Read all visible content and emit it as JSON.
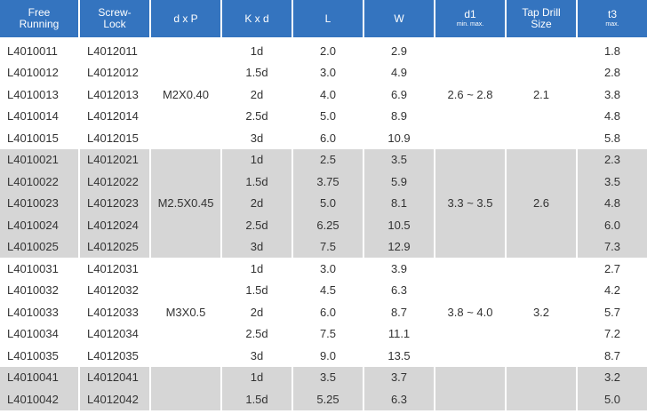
{
  "header": [
    {
      "lines": [
        "Free",
        "Running"
      ]
    },
    {
      "lines": [
        "Screw-",
        "Lock"
      ]
    },
    {
      "lines": [
        "d x P"
      ]
    },
    {
      "lines": [
        "K x d"
      ]
    },
    {
      "lines": [
        "L"
      ]
    },
    {
      "lines": [
        "W"
      ]
    },
    {
      "lines": [
        "d1"
      ],
      "note": "min. max."
    },
    {
      "lines": [
        "Tap Drill",
        "Size"
      ]
    },
    {
      "lines": [
        "t3"
      ],
      "note": "max."
    }
  ],
  "groups": [
    {
      "thread": "M2X0.40",
      "d1": "2.6 ~ 2.8",
      "tap_drill": "2.1",
      "rows": [
        [
          "L4010011",
          "L4012011",
          "1d",
          "2.0",
          "2.9",
          "1.8"
        ],
        [
          "L4010012",
          "L4012012",
          "1.5d",
          "3.0",
          "4.9",
          "2.8"
        ],
        [
          "L4010013",
          "L4012013",
          "2d",
          "4.0",
          "6.9",
          "3.8"
        ],
        [
          "L4010014",
          "L4012014",
          "2.5d",
          "5.0",
          "8.9",
          "4.8"
        ],
        [
          "L4010015",
          "L4012015",
          "3d",
          "6.0",
          "10.9",
          "5.8"
        ]
      ]
    },
    {
      "thread": "M2.5X0.45",
      "d1": "3.3 ~ 3.5",
      "tap_drill": "2.6",
      "rows": [
        [
          "L4010021",
          "L4012021",
          "1d",
          "2.5",
          "3.5",
          "2.3"
        ],
        [
          "L4010022",
          "L4012022",
          "1.5d",
          "3.75",
          "5.9",
          "3.5"
        ],
        [
          "L4010023",
          "L4012023",
          "2d",
          "5.0",
          "8.1",
          "4.8"
        ],
        [
          "L4010024",
          "L4012024",
          "2.5d",
          "6.25",
          "10.5",
          "6.0"
        ],
        [
          "L4010025",
          "L4012025",
          "3d",
          "7.5",
          "12.9",
          "7.3"
        ]
      ]
    },
    {
      "thread": "M3X0.5",
      "d1": "3.8 ~ 4.0",
      "tap_drill": "3.2",
      "rows": [
        [
          "L4010031",
          "L4012031",
          "1d",
          "3.0",
          "3.9",
          "2.7"
        ],
        [
          "L4010032",
          "L4012032",
          "1.5d",
          "4.5",
          "6.3",
          "4.2"
        ],
        [
          "L4010033",
          "L4012033",
          "2d",
          "6.0",
          "8.7",
          "5.7"
        ],
        [
          "L4010034",
          "L4012034",
          "2.5d",
          "7.5",
          "11.1",
          "7.2"
        ],
        [
          "L4010035",
          "L4012035",
          "3d",
          "9.0",
          "13.5",
          "8.7"
        ]
      ]
    },
    {
      "rows": [
        [
          "L4010041",
          "L4012041",
          "1d",
          "3.5",
          "3.7",
          "3.2"
        ],
        [
          "L4010042",
          "L4012042",
          "1.5d",
          "5.25",
          "6.3",
          "5.0"
        ]
      ]
    }
  ]
}
